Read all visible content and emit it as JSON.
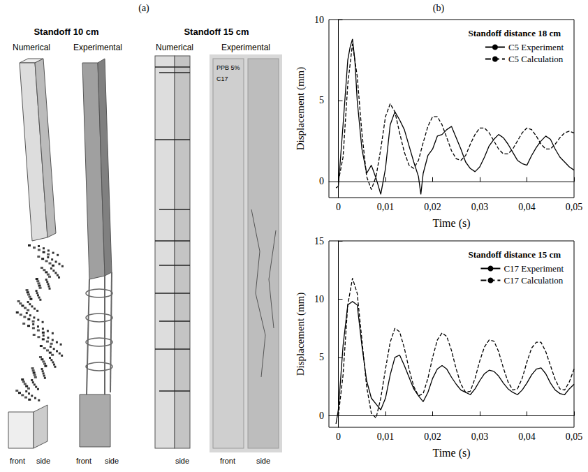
{
  "figure_a": {
    "panel_label": "(a)",
    "groups": [
      {
        "title": "Standoff 10 cm",
        "views": [
          {
            "label": "Numerical",
            "faces": [
              "front",
              "side"
            ]
          },
          {
            "label": "Experimental",
            "faces": [
              "front",
              "side"
            ]
          }
        ]
      },
      {
        "title": "Standoff 15 cm",
        "views": [
          {
            "label": "Numerical",
            "faces": [
              "side"
            ]
          },
          {
            "label": "Experimental",
            "faces": [
              "front",
              "side"
            ],
            "marking": [
              "PPB 5%",
              "C17"
            ]
          }
        ]
      }
    ]
  },
  "figure_b_label": "(b)",
  "chart_data": [
    {
      "type": "line",
      "title": "Standoff distance 18 cm",
      "xlabel": "Time (s)",
      "ylabel": "Displacement (mm)",
      "xlim": [
        -0.002,
        0.05
      ],
      "ylim": [
        -1,
        10
      ],
      "xticks": [
        0,
        {
          "value": 0.01,
          "label": "0,01"
        },
        {
          "value": 0.02,
          "label": "0,02"
        },
        {
          "value": 0.03,
          "label": "0,03"
        },
        {
          "value": 0.04,
          "label": "0,04"
        },
        {
          "value": 0.05,
          "label": "0,05"
        }
      ],
      "yticks": [
        0,
        5,
        10
      ],
      "grid": false,
      "legend": "upper right",
      "series": [
        {
          "name": "C5 Experiment",
          "color": "#000000",
          "line_style": "solid",
          "x": [
            -0.0005,
            0,
            0.001,
            0.002,
            0.0025,
            0.003,
            0.0035,
            0.004,
            0.005,
            0.006,
            0.007,
            0.008,
            0.009,
            0.01,
            0.011,
            0.012,
            0.013,
            0.014,
            0.015,
            0.016,
            0.017,
            0.0175,
            0.018,
            0.019,
            0.02,
            0.021,
            0.022,
            0.023,
            0.024,
            0.025,
            0.026,
            0.027,
            0.028,
            0.029,
            0.03,
            0.031,
            0.032,
            0.033,
            0.034,
            0.035,
            0.036,
            0.037,
            0.038,
            0.039,
            0.04,
            0.041,
            0.042,
            0.043,
            0.044,
            0.045,
            0.046,
            0.047,
            0.048,
            0.049,
            0.05
          ],
          "values": [
            -0.4,
            -0.3,
            3.5,
            7.5,
            8.3,
            8.8,
            7.5,
            5,
            2,
            0.5,
            1.0,
            0.2,
            -0.8,
            0.8,
            3.5,
            4.3,
            3.8,
            3.2,
            2.2,
            1.2,
            0.3,
            -0.8,
            0.5,
            1.6,
            2.0,
            2.8,
            2.9,
            3.2,
            3.4,
            2.7,
            2.0,
            1.2,
            0.8,
            0.6,
            0.9,
            1.5,
            2.2,
            2.6,
            2.9,
            2.7,
            2.3,
            1.8,
            1.3,
            1.1,
            1.0,
            1.6,
            2.1,
            2.5,
            2.8,
            2.6,
            2.0,
            1.5,
            1.2,
            0.9,
            0.7
          ]
        },
        {
          "name": "C5 Calculation",
          "color": "#000000",
          "line_style": "dashed",
          "x": [
            0,
            0.001,
            0.002,
            0.003,
            0.004,
            0.005,
            0.006,
            0.007,
            0.008,
            0.009,
            0.01,
            0.011,
            0.012,
            0.013,
            0.014,
            0.015,
            0.016,
            0.017,
            0.018,
            0.019,
            0.02,
            0.021,
            0.022,
            0.023,
            0.024,
            0.025,
            0.026,
            0.027,
            0.028,
            0.029,
            0.03,
            0.031,
            0.032,
            0.033,
            0.034,
            0.035,
            0.036,
            0.037,
            0.038,
            0.039,
            0.04,
            0.041,
            0.042,
            0.043,
            0.044,
            0.045,
            0.046,
            0.047,
            0.048,
            0.049,
            0.05
          ],
          "values": [
            0,
            1.5,
            6,
            8.5,
            6.5,
            3,
            0.3,
            -0.5,
            0.3,
            2,
            4,
            4.8,
            4.3,
            3.0,
            1.8,
            1.0,
            0.8,
            1.3,
            2.4,
            3.4,
            4.0,
            4.0,
            3.5,
            2.7,
            1.9,
            1.4,
            1.3,
            1.6,
            2.3,
            2.9,
            3.3,
            3.3,
            3.0,
            2.5,
            2.0,
            1.7,
            1.7,
            2.0,
            2.5,
            3.0,
            3.3,
            3.2,
            2.8,
            2.3,
            2.0,
            2.0,
            2.3,
            2.7,
            3.0,
            3.1,
            3.0
          ]
        }
      ]
    },
    {
      "type": "line",
      "title": "Standoff distance 15 cm",
      "xlabel": "Time (s)",
      "ylabel": "Displacement (mm)",
      "xlim": [
        -0.002,
        0.05
      ],
      "ylim": [
        -1,
        15
      ],
      "xticks": [
        0,
        {
          "value": 0.01,
          "label": "0,01"
        },
        {
          "value": 0.02,
          "label": "0,02"
        },
        {
          "value": 0.03,
          "label": "0,03"
        },
        {
          "value": 0.04,
          "label": "0,04"
        },
        {
          "value": 0.05,
          "label": "0,05"
        }
      ],
      "yticks": [
        0,
        5,
        10,
        15
      ],
      "grid": false,
      "legend": "upper right",
      "series": [
        {
          "name": "C17 Experiment",
          "color": "#000000",
          "line_style": "solid",
          "x": [
            -0.0005,
            0,
            0.001,
            0.002,
            0.003,
            0.004,
            0.005,
            0.006,
            0.007,
            0.008,
            0.009,
            0.01,
            0.011,
            0.012,
            0.013,
            0.014,
            0.015,
            0.016,
            0.017,
            0.018,
            0.019,
            0.02,
            0.021,
            0.022,
            0.023,
            0.024,
            0.025,
            0.026,
            0.027,
            0.028,
            0.029,
            0.03,
            0.031,
            0.032,
            0.033,
            0.034,
            0.035,
            0.036,
            0.037,
            0.038,
            0.039,
            0.04,
            0.041,
            0.042,
            0.043,
            0.044,
            0.045,
            0.046,
            0.047,
            0.048,
            0.049,
            0.05
          ],
          "values": [
            -0.7,
            0.5,
            6,
            9.5,
            9.8,
            9.5,
            6,
            3,
            1.5,
            1.0,
            0.5,
            1.5,
            3.5,
            5.0,
            5.2,
            4.3,
            3.3,
            2.3,
            1.7,
            1.2,
            2.0,
            3.2,
            4.0,
            4.3,
            4.0,
            3.3,
            2.7,
            2.2,
            2.0,
            1.8,
            2.3,
            3.0,
            3.6,
            3.9,
            3.8,
            3.4,
            2.8,
            2.3,
            2.0,
            1.8,
            2.2,
            2.8,
            3.5,
            4.0,
            4.1,
            3.6,
            2.8,
            2.2,
            1.9,
            1.8,
            2.3,
            2.7
          ]
        },
        {
          "name": "C17 Calculation",
          "color": "#000000",
          "line_style": "dashed",
          "x": [
            0,
            0.001,
            0.002,
            0.003,
            0.004,
            0.005,
            0.006,
            0.007,
            0.008,
            0.009,
            0.01,
            0.011,
            0.012,
            0.013,
            0.014,
            0.015,
            0.016,
            0.017,
            0.018,
            0.019,
            0.02,
            0.021,
            0.022,
            0.023,
            0.024,
            0.025,
            0.026,
            0.027,
            0.028,
            0.029,
            0.03,
            0.031,
            0.032,
            0.033,
            0.034,
            0.035,
            0.036,
            0.037,
            0.038,
            0.039,
            0.04,
            0.041,
            0.042,
            0.043,
            0.044,
            0.045,
            0.046,
            0.047,
            0.048,
            0.049,
            0.05
          ],
          "values": [
            0,
            3.5,
            9.5,
            11.8,
            10.5,
            6.5,
            2.5,
            0.2,
            -0.2,
            1.5,
            4.0,
            6.3,
            7.5,
            7.2,
            5.8,
            4.0,
            2.5,
            1.7,
            1.9,
            3.2,
            5.0,
            6.5,
            7.1,
            6.8,
            5.6,
            4.0,
            2.7,
            2.0,
            2.1,
            3.2,
            4.7,
            5.9,
            6.5,
            6.4,
            5.5,
            4.1,
            2.9,
            2.2,
            2.3,
            3.2,
            4.6,
            5.8,
            6.3,
            6.3,
            5.5,
            4.3,
            3.1,
            2.3,
            2.2,
            2.9,
            4.0
          ]
        }
      ]
    }
  ]
}
